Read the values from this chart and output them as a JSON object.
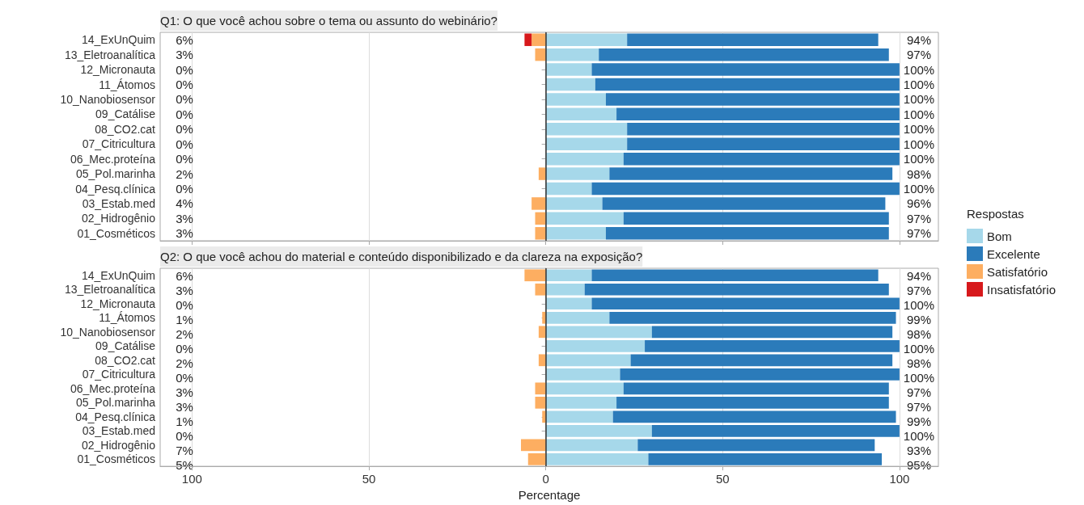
{
  "chart_data": [
    {
      "type": "bar",
      "orientation": "horizontal",
      "stacked": true,
      "title": "Q1: O que você achou sobre o tema ou assunto do webinário?",
      "legend_title": "Respostas",
      "legend": "right",
      "grid": "x",
      "tick_labels": "y",
      "categories": [
        "14_ExUnQuim",
        "13_Eletroanalítica",
        "12_Micronauta",
        "11_Átomos",
        "10_Nanobiosensor",
        "09_Catálise",
        "08_CO2.cat",
        "07_Citricultura",
        "06_Mec.proteína",
        "05_Pol.marinha",
        "04_Pesq.clínica",
        "03_Estab.med",
        "02_Hidrogênio",
        "01_Cosméticos"
      ],
      "xlim": [
        -109,
        111
      ],
      "xticks": [
        -100,
        -50,
        0,
        50,
        100
      ],
      "ref_lines": [
        {
          "axis": "x",
          "value": 0,
          "color": "#333333"
        }
      ],
      "series": [
        {
          "name": "Bom",
          "color": "#a6d8ea",
          "values": [
            23,
            15,
            13,
            14,
            17,
            20,
            23,
            23,
            22,
            18,
            13,
            16,
            22,
            17
          ]
        },
        {
          "name": "Excelente",
          "color": "#2b7bba",
          "values": [
            71,
            82,
            87,
            86,
            83,
            80,
            77,
            77,
            78,
            80,
            87,
            80,
            75,
            80
          ]
        },
        {
          "name": "Satisfatório",
          "color": "#fdae61",
          "values": [
            -4,
            -3,
            0,
            0,
            0,
            0,
            0,
            0,
            0,
            -2,
            0,
            -4,
            -3,
            -3
          ]
        },
        {
          "name": "Insatisfatório",
          "color": "#d7191c",
          "values": [
            -2,
            0,
            0,
            0,
            0,
            0,
            0,
            0,
            0,
            0,
            0,
            0,
            0,
            0
          ]
        }
      ],
      "annotations": [
        "6%",
        "3%",
        "0%",
        "0%",
        "0%",
        "0%",
        "0%",
        "0%",
        "0%",
        "2%",
        "0%",
        "4%",
        "3%",
        "3%",
        "94%",
        "97%",
        "100%",
        "100%",
        "100%",
        "100%",
        "100%",
        "100%",
        "100%",
        "98%",
        "100%",
        "96%",
        "97%",
        "97%"
      ]
    },
    {
      "type": "bar",
      "orientation": "horizontal",
      "stacked": true,
      "title": "Q2: O que você achou do material e conteúdo disponibilizado e da clareza na exposição?",
      "xlabel": "Percentage",
      "grid": "x",
      "categories": [
        "14_ExUnQuim",
        "13_Eletroanalítica",
        "12_Micronauta",
        "11_Átomos",
        "10_Nanobiosensor",
        "09_Catálise",
        "08_CO2.cat",
        "07_Citricultura",
        "06_Mec.proteína",
        "05_Pol.marinha",
        "04_Pesq.clínica",
        "03_Estab.med",
        "02_Hidrogênio",
        "01_Cosméticos"
      ],
      "xlim": [
        -109,
        111
      ],
      "xticks": [
        {
          "value": -100,
          "label": "100"
        },
        {
          "value": -50,
          "label": "50"
        },
        0,
        50,
        100
      ],
      "ref_lines": [
        {
          "axis": "x",
          "value": 0,
          "color": "#333333"
        }
      ],
      "series": [
        {
          "color": "#a6d8ea",
          "values": [
            13,
            11,
            13,
            18,
            30,
            28,
            24,
            21,
            22,
            20,
            19,
            30,
            26,
            29
          ]
        },
        {
          "color": "#2b7bba",
          "values": [
            81,
            86,
            87,
            81,
            68,
            72,
            74,
            79,
            75,
            77,
            80,
            70,
            67,
            66
          ]
        },
        {
          "color": "#fdae61",
          "values": [
            -6,
            -3,
            0,
            -1,
            -2,
            0,
            -2,
            0,
            -3,
            -3,
            -1,
            0,
            -7,
            -5
          ]
        },
        {
          "color": "#d7191c",
          "values": [
            0,
            0,
            0,
            0,
            0,
            0,
            0,
            0,
            0,
            0,
            0,
            0,
            0,
            0
          ]
        }
      ],
      "annotations": [
        "6%",
        "3%",
        "0%",
        "1%",
        "2%",
        "0%",
        "2%",
        "0%",
        "3%",
        "3%",
        "1%",
        "0%",
        "7%",
        "5%",
        "94%",
        "97%",
        "100%",
        "99%",
        "98%",
        "100%",
        "98%",
        "100%",
        "97%",
        "97%",
        "99%",
        "100%",
        "93%",
        "95%"
      ]
    }
  ]
}
